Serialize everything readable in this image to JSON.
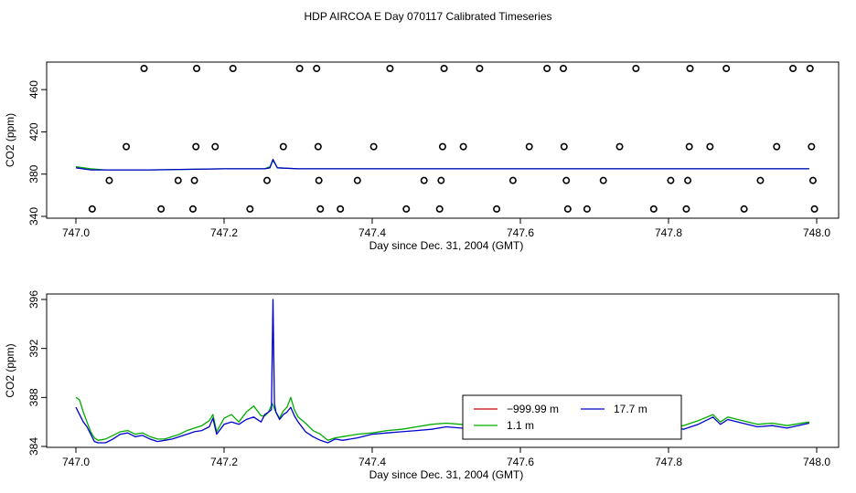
{
  "title": "HDP AIRCOA E  Day 070117  Calibrated Timeseries",
  "chart_data": [
    {
      "type": "line",
      "xlabel": "Day since Dec. 31, 2004 (GMT)",
      "ylabel": "CO2 (ppm)",
      "xlim": [
        747.0,
        748.0
      ],
      "ylim": [
        340,
        480
      ],
      "x_ticks": [
        "747.0",
        "747.2",
        "747.4",
        "747.6",
        "747.8",
        "748.0"
      ],
      "y_ticks": [
        "340",
        "380",
        "420",
        "460"
      ],
      "grid": false,
      "legend": "none",
      "scatter_series": {
        "marker": "open-circle",
        "color": "#000000",
        "points": [
          [
            747.092,
            480
          ],
          [
            747.163,
            480
          ],
          [
            747.212,
            480
          ],
          [
            747.302,
            480
          ],
          [
            747.325,
            480
          ],
          [
            747.424,
            480
          ],
          [
            747.497,
            480
          ],
          [
            747.545,
            480
          ],
          [
            747.636,
            480
          ],
          [
            747.658,
            480
          ],
          [
            747.756,
            480
          ],
          [
            747.829,
            480
          ],
          [
            747.878,
            480
          ],
          [
            747.968,
            480
          ],
          [
            747.991,
            480
          ],
          [
            747.068,
            406
          ],
          [
            747.162,
            406
          ],
          [
            747.188,
            406
          ],
          [
            747.28,
            406
          ],
          [
            747.327,
            406
          ],
          [
            747.402,
            406
          ],
          [
            747.495,
            406
          ],
          [
            747.523,
            406
          ],
          [
            747.612,
            406
          ],
          [
            747.659,
            406
          ],
          [
            747.734,
            406
          ],
          [
            747.828,
            406
          ],
          [
            747.856,
            406
          ],
          [
            747.946,
            406
          ],
          [
            747.993,
            406
          ],
          [
            747.045,
            374
          ],
          [
            747.138,
            374
          ],
          [
            747.16,
            374
          ],
          [
            747.258,
            374
          ],
          [
            747.328,
            374
          ],
          [
            747.38,
            374
          ],
          [
            747.47,
            374
          ],
          [
            747.493,
            374
          ],
          [
            747.59,
            374
          ],
          [
            747.662,
            374
          ],
          [
            747.712,
            374
          ],
          [
            747.803,
            374
          ],
          [
            747.826,
            374
          ],
          [
            747.924,
            374
          ],
          [
            747.995,
            374
          ],
          [
            747.022,
            347
          ],
          [
            747.115,
            347
          ],
          [
            747.158,
            347
          ],
          [
            747.235,
            347
          ],
          [
            747.33,
            347
          ],
          [
            747.357,
            347
          ],
          [
            747.446,
            347
          ],
          [
            747.491,
            347
          ],
          [
            747.568,
            347
          ],
          [
            747.664,
            347
          ],
          [
            747.69,
            347
          ],
          [
            747.78,
            347
          ],
          [
            747.824,
            347
          ],
          [
            747.902,
            347
          ],
          [
            747.997,
            347
          ]
        ]
      },
      "series": [
        {
          "color": "#00aa00",
          "x": [
            747.0,
            747.02,
            747.04,
            747.1,
            747.2,
            747.255,
            747.262,
            747.266,
            747.272,
            747.3,
            747.4,
            747.5,
            747.6,
            747.7,
            747.8,
            747.9,
            747.99
          ],
          "y": [
            387,
            385,
            384,
            384,
            385,
            385,
            387,
            393,
            386,
            385,
            385,
            385,
            385,
            385,
            385,
            385,
            385
          ]
        },
        {
          "color": "#0000cc",
          "x": [
            747.0,
            747.02,
            747.04,
            747.1,
            747.2,
            747.255,
            747.262,
            747.266,
            747.272,
            747.3,
            747.4,
            747.5,
            747.6,
            747.7,
            747.8,
            747.9,
            747.99
          ],
          "y": [
            386,
            384,
            384,
            384,
            385,
            385,
            386,
            394,
            386,
            385,
            385,
            385,
            385,
            385,
            385,
            385,
            385
          ]
        }
      ]
    },
    {
      "type": "line",
      "xlabel": "Day since Dec. 31, 2004 (GMT)",
      "ylabel": "CO2 (ppm)",
      "xlim": [
        747.0,
        748.0
      ],
      "ylim": [
        384,
        396
      ],
      "x_ticks": [
        "747.0",
        "747.2",
        "747.4",
        "747.6",
        "747.8",
        "748.0"
      ],
      "y_ticks": [
        "384",
        "388",
        "392",
        "396"
      ],
      "grid": false,
      "legend": "bottom-right, boxed",
      "legend_entries": [
        {
          "label": "−999.99 m",
          "color": "#cc0000"
        },
        {
          "label": "17.7 m",
          "color": "#0000cc"
        },
        {
          "label": "1.1 m",
          "color": "#00aa00"
        }
      ],
      "series": [
        {
          "name": "1.1 m",
          "color": "#00aa00",
          "x": [
            747.0,
            747.005,
            747.01,
            747.015,
            747.02,
            747.025,
            747.03,
            747.04,
            747.05,
            747.06,
            747.07,
            747.08,
            747.09,
            747.1,
            747.11,
            747.12,
            747.13,
            747.14,
            747.15,
            747.16,
            747.17,
            747.18,
            747.185,
            747.19,
            747.2,
            747.21,
            747.22,
            747.23,
            747.24,
            747.25,
            747.255,
            747.26,
            747.265,
            747.27,
            747.275,
            747.28,
            747.285,
            747.29,
            747.295,
            747.3,
            747.31,
            747.32,
            747.33,
            747.34,
            747.35,
            747.36,
            747.38,
            747.4,
            747.42,
            747.44,
            747.46,
            747.48,
            747.5,
            747.52,
            747.54,
            747.56,
            747.58,
            747.6,
            747.62,
            747.64,
            747.66,
            747.68,
            747.7,
            747.72,
            747.74,
            747.76,
            747.78,
            747.8,
            747.82,
            747.84,
            747.86,
            747.87,
            747.88,
            747.9,
            747.92,
            747.94,
            747.96,
            747.99
          ],
          "y": [
            388.0,
            387.8,
            386.8,
            386.0,
            385.2,
            384.7,
            384.5,
            384.6,
            384.9,
            385.2,
            385.3,
            385.0,
            385.1,
            384.8,
            384.6,
            384.6,
            384.8,
            385.0,
            385.3,
            385.5,
            385.7,
            386.1,
            386.6,
            385.2,
            386.3,
            386.6,
            386.0,
            386.8,
            387.3,
            386.5,
            386.5,
            386.8,
            387.5,
            386.8,
            386.3,
            386.9,
            387.2,
            388.0,
            387.0,
            386.4,
            385.9,
            385.3,
            385.0,
            384.5,
            384.7,
            384.8,
            385.0,
            385.1,
            385.3,
            385.4,
            385.6,
            385.8,
            385.9,
            385.8,
            385.6,
            385.4,
            385.3,
            385.2,
            385.3,
            385.1,
            385.2,
            385.3,
            385.4,
            385.4,
            385.5,
            385.6,
            385.4,
            385.5,
            385.7,
            386.1,
            386.6,
            386.0,
            386.4,
            386.1,
            385.8,
            385.9,
            385.7,
            386.0
          ]
        },
        {
          "name": "17.7 m",
          "color": "#0000cc",
          "x": [
            747.0,
            747.005,
            747.01,
            747.015,
            747.02,
            747.025,
            747.03,
            747.04,
            747.05,
            747.06,
            747.07,
            747.08,
            747.09,
            747.1,
            747.11,
            747.12,
            747.13,
            747.14,
            747.15,
            747.16,
            747.17,
            747.18,
            747.185,
            747.19,
            747.2,
            747.21,
            747.22,
            747.23,
            747.24,
            747.25,
            747.255,
            747.26,
            747.264,
            747.266,
            747.268,
            747.27,
            747.275,
            747.28,
            747.285,
            747.29,
            747.295,
            747.3,
            747.31,
            747.32,
            747.33,
            747.34,
            747.35,
            747.36,
            747.38,
            747.4,
            747.42,
            747.44,
            747.46,
            747.48,
            747.5,
            747.52,
            747.54,
            747.56,
            747.58,
            747.6,
            747.62,
            747.64,
            747.66,
            747.68,
            747.7,
            747.72,
            747.74,
            747.76,
            747.78,
            747.8,
            747.805,
            747.81,
            747.82,
            747.84,
            747.86,
            747.87,
            747.88,
            747.9,
            747.92,
            747.94,
            747.96,
            747.99
          ],
          "y": [
            387.2,
            386.6,
            386.0,
            385.6,
            385.0,
            384.4,
            384.3,
            384.3,
            384.6,
            385.0,
            385.1,
            384.8,
            384.9,
            384.6,
            384.4,
            384.5,
            384.6,
            384.8,
            385.0,
            385.2,
            385.3,
            385.6,
            386.3,
            385.0,
            385.8,
            386.0,
            385.8,
            386.2,
            386.4,
            386.0,
            386.6,
            386.8,
            387.0,
            396.0,
            387.5,
            386.8,
            386.2,
            386.6,
            386.8,
            387.2,
            386.5,
            386.0,
            385.2,
            384.8,
            384.5,
            384.3,
            384.6,
            384.5,
            384.7,
            385.0,
            385.1,
            385.2,
            385.3,
            385.4,
            385.6,
            385.5,
            385.4,
            385.2,
            385.1,
            385.0,
            385.1,
            384.9,
            385.0,
            385.1,
            385.2,
            385.1,
            385.3,
            385.4,
            385.3,
            385.4,
            387.0,
            385.6,
            385.4,
            385.8,
            386.4,
            385.8,
            386.2,
            385.9,
            385.6,
            385.7,
            385.5,
            385.9
          ]
        }
      ]
    }
  ]
}
